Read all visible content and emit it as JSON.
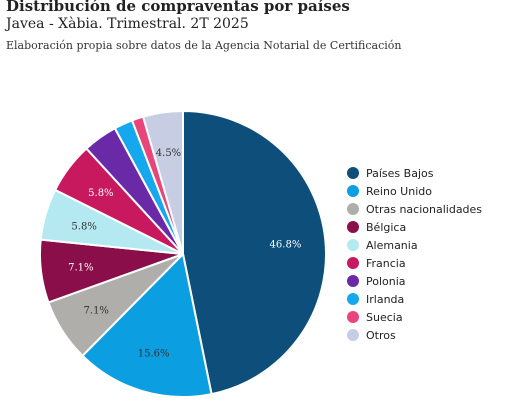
{
  "chart_data": {
    "type": "pie",
    "title": "Distribución de compraventas por países",
    "subtitle": "Javea - Xàbia. Trimestral. 2T 2025",
    "source": "Elaboración propia sobre datos de la Agencia Notarial de Certificación",
    "legend_position": "right",
    "slices": [
      {
        "name": "Países Bajos",
        "value": 46.8,
        "label": "46.8%",
        "color": "#0d4f7a"
      },
      {
        "name": "Reino Unido",
        "value": 15.6,
        "label": "15.6%",
        "color": "#0b9ee0"
      },
      {
        "name": "Otras nacionalidades",
        "value": 7.1,
        "label": "7.1%",
        "color": "#b0aeab"
      },
      {
        "name": "Bélgica",
        "value": 7.1,
        "label": "7.1%",
        "color": "#8a0e4a"
      },
      {
        "name": "Alemania",
        "value": 5.8,
        "label": "5.8%",
        "color": "#b5e9f2"
      },
      {
        "name": "Francia",
        "value": 5.8,
        "label": "5.8%",
        "color": "#c8185e"
      },
      {
        "name": "Polonia",
        "value": 3.9,
        "label": "",
        "color": "#6a2aa8"
      },
      {
        "name": "Irlanda",
        "value": 2.1,
        "label": "",
        "color": "#16a8ee"
      },
      {
        "name": "Suecia",
        "value": 1.3,
        "label": "",
        "color": "#e8457a"
      },
      {
        "name": "Otros",
        "value": 4.5,
        "label": "4.5%",
        "color": "#c7cde3"
      }
    ]
  }
}
